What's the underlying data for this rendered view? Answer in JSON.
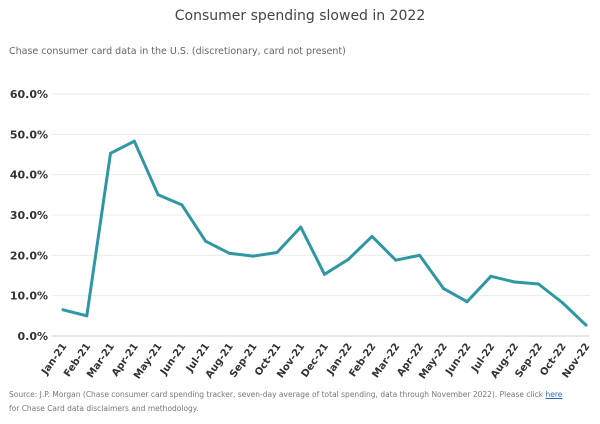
{
  "chart_data": {
    "type": "line",
    "title": "Consumer spending slowed in 2022",
    "subtitle": "Chase consumer card data in the U.S. (discretionary, card not present)",
    "categories": [
      "Jan-21",
      "Feb-21",
      "Mar-21",
      "Apr-21",
      "May-21",
      "Jun-21",
      "Jul-21",
      "Aug-21",
      "Sep-21",
      "Oct-21",
      "Nov-21",
      "Dec-21",
      "Jan-22",
      "Feb-22",
      "Mar-22",
      "Apr-22",
      "May-22",
      "Jun-22",
      "Jul-22",
      "Aug-22",
      "Sep-22",
      "Oct-22",
      "Nov-22"
    ],
    "values": [
      6.5,
      5.0,
      45.3,
      48.3,
      35.0,
      32.5,
      23.5,
      20.5,
      19.8,
      20.7,
      27.0,
      15.3,
      19.0,
      24.7,
      18.8,
      20.0,
      11.8,
      8.5,
      14.8,
      13.4,
      12.9,
      8.3,
      2.7
    ],
    "yticks": [
      "0.0%",
      "10.0%",
      "20.0%",
      "30.0%",
      "40.0%",
      "50.0%",
      "60.0%"
    ],
    "ylim": [
      0,
      60
    ],
    "xlabel": "",
    "ylabel": "",
    "grid": true,
    "line_color": "#2e97a3"
  },
  "source": {
    "prefix": "Source: J.P. Morgan (Chase consumer card spending tracker, seven-day average of total spending, data through November 2022). Please click ",
    "link": "here",
    "suffix": " for Chase Card data disclaimers and methodology."
  }
}
